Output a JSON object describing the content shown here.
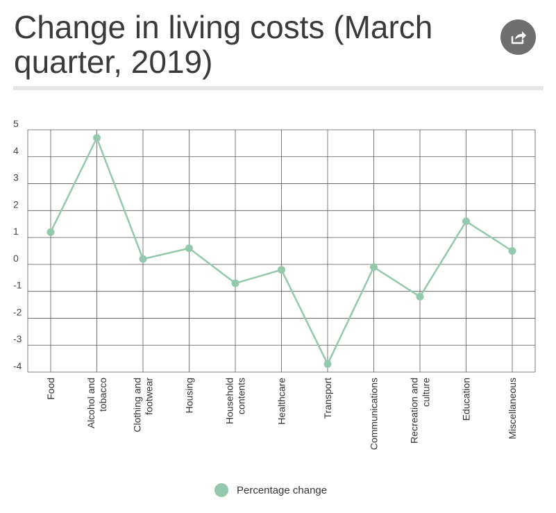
{
  "title": "Change in living costs (March quarter, 2019)",
  "colors": {
    "series": "#93c8ab",
    "grid": "#555555",
    "share_button": "#6f6f6f"
  },
  "icons": {
    "share": "share-icon"
  },
  "legend": {
    "label": "Percentage change"
  },
  "chart_data": {
    "type": "line",
    "title": "Change in living costs (March quarter, 2019)",
    "xlabel": "",
    "ylabel": "",
    "ylim": [
      -4,
      5
    ],
    "yticks": [
      5,
      4,
      3,
      2,
      1,
      0,
      -1,
      -2,
      -3,
      -4
    ],
    "grid": true,
    "legend_position": "bottom",
    "categories": [
      [
        "Food"
      ],
      [
        "Alcohol and",
        "tobacco"
      ],
      [
        "Clothing and",
        "footwear"
      ],
      [
        "Housing"
      ],
      [
        "Household",
        "contents"
      ],
      [
        "Healthcare"
      ],
      [
        "Transport"
      ],
      [
        "Communications"
      ],
      [
        "Recreation and",
        "culture"
      ],
      [
        "Education"
      ],
      [
        "Miscellaneous"
      ]
    ],
    "series": [
      {
        "name": "Percentage change",
        "values": [
          1.2,
          4.7,
          0.2,
          0.6,
          -0.7,
          -0.2,
          -3.7,
          -0.1,
          -1.2,
          1.6,
          0.5
        ]
      }
    ]
  }
}
